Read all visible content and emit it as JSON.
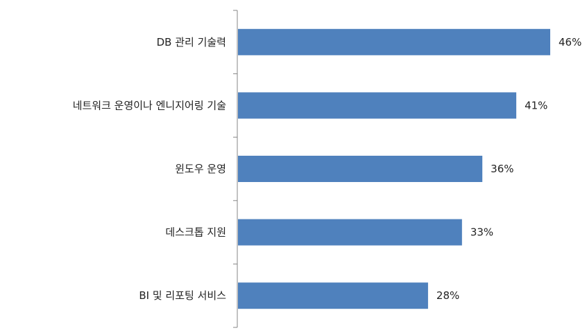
{
  "chart_data": {
    "type": "bar",
    "orientation": "horizontal",
    "categories": [
      "DB 관리 기술력",
      "네트워크 운영이나 엔니지어링 기술",
      "윈도우 운영",
      "데스크톱 지원",
      "BI 및 리포팅 서비스"
    ],
    "values": [
      46,
      41,
      36,
      33,
      28
    ],
    "data_labels": [
      "46%",
      "41%",
      "36%",
      "33%",
      "28%"
    ],
    "xlim": [
      0,
      50
    ],
    "unit": "%",
    "grid": false,
    "legend": "none",
    "bar_color": "#4f81bd",
    "axis_color": "#868686"
  }
}
